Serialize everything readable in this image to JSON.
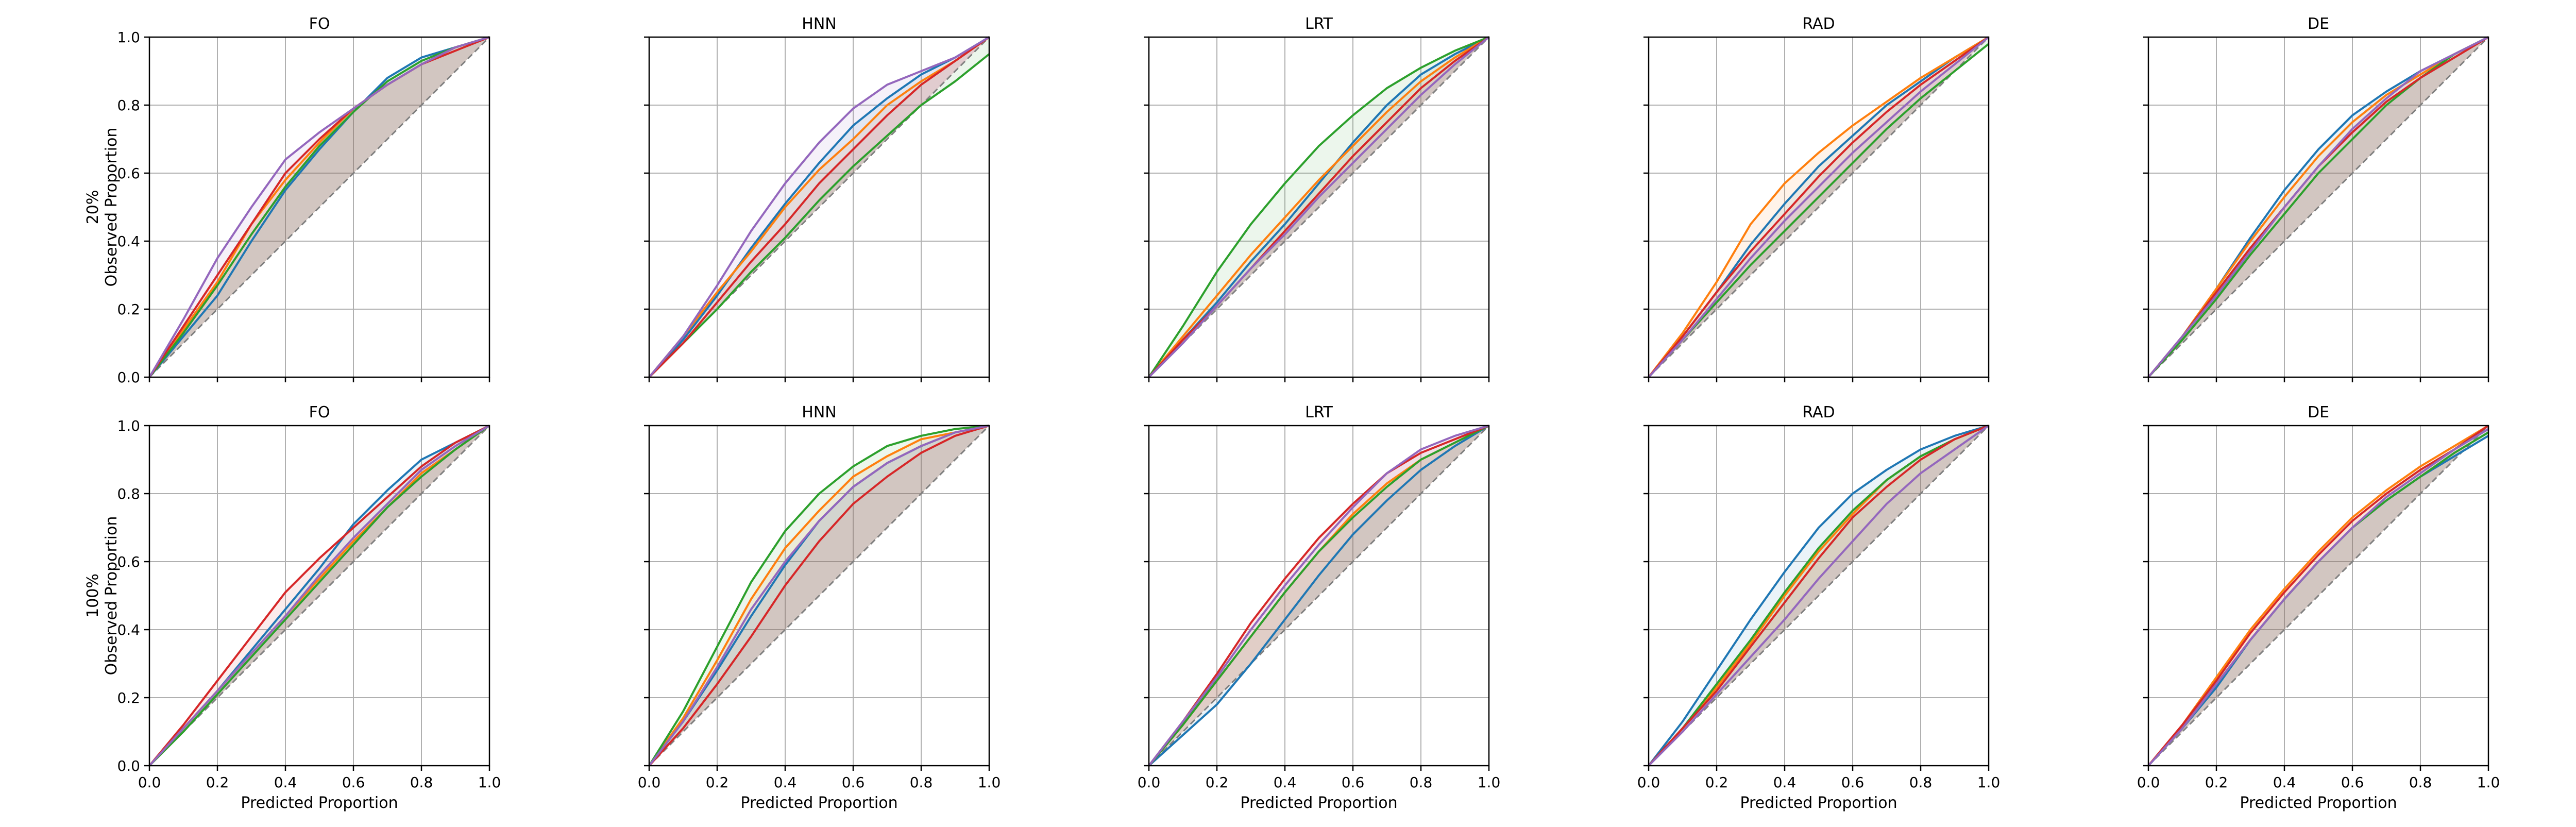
{
  "figure": {
    "row_labels": [
      [
        "20%",
        "Observed Proportion"
      ],
      [
        "100%",
        "Observed Proportion"
      ]
    ],
    "xlabel": "Predicted Proportion"
  },
  "chart_data": [
    {
      "type": "line",
      "title": "FO",
      "row_label": "20%",
      "ylabel": "Observed Proportion",
      "xlabel": "",
      "xlim": [
        0,
        1
      ],
      "ylim": [
        0,
        1
      ],
      "grid": true,
      "x": [
        0,
        0.1,
        0.2,
        0.3,
        0.4,
        0.5,
        0.6,
        0.7,
        0.8,
        0.9,
        1.0
      ],
      "series": [
        {
          "color": "#1f77b4",
          "values": [
            0,
            0.12,
            0.24,
            0.4,
            0.55,
            0.67,
            0.78,
            0.88,
            0.94,
            0.97,
            1.0
          ]
        },
        {
          "color": "#ff7f0e",
          "values": [
            0,
            0.14,
            0.28,
            0.45,
            0.58,
            0.69,
            0.79,
            0.86,
            0.92,
            0.97,
            1.0
          ]
        },
        {
          "color": "#2ca02c",
          "values": [
            0,
            0.13,
            0.27,
            0.42,
            0.56,
            0.68,
            0.78,
            0.87,
            0.93,
            0.97,
            1.0
          ]
        },
        {
          "color": "#d62728",
          "values": [
            0,
            0.15,
            0.3,
            0.45,
            0.6,
            0.7,
            0.79,
            0.86,
            0.92,
            0.96,
            1.0
          ]
        },
        {
          "color": "#9467bd",
          "values": [
            0,
            0.17,
            0.35,
            0.5,
            0.64,
            0.72,
            0.79,
            0.86,
            0.92,
            0.97,
            1.0
          ]
        }
      ]
    },
    {
      "type": "line",
      "title": "HNN",
      "row_label": "20%",
      "xlabel": "",
      "xlim": [
        0,
        1
      ],
      "ylim": [
        0,
        1
      ],
      "grid": true,
      "x": [
        0,
        0.1,
        0.2,
        0.3,
        0.4,
        0.5,
        0.6,
        0.7,
        0.8,
        0.9,
        1.0
      ],
      "series": [
        {
          "color": "#1f77b4",
          "values": [
            0,
            0.11,
            0.24,
            0.38,
            0.51,
            0.63,
            0.74,
            0.82,
            0.89,
            0.94,
            1.0
          ]
        },
        {
          "color": "#ff7f0e",
          "values": [
            0,
            0.12,
            0.25,
            0.37,
            0.5,
            0.61,
            0.7,
            0.8,
            0.87,
            0.93,
            1.0
          ]
        },
        {
          "color": "#2ca02c",
          "values": [
            0,
            0.1,
            0.2,
            0.31,
            0.41,
            0.52,
            0.62,
            0.71,
            0.8,
            0.87,
            0.95
          ]
        },
        {
          "color": "#d62728",
          "values": [
            0,
            0.1,
            0.22,
            0.34,
            0.45,
            0.57,
            0.67,
            0.77,
            0.86,
            0.93,
            1.0
          ]
        },
        {
          "color": "#9467bd",
          "values": [
            0,
            0.12,
            0.27,
            0.43,
            0.57,
            0.69,
            0.79,
            0.86,
            0.9,
            0.94,
            1.0
          ]
        }
      ]
    },
    {
      "type": "line",
      "title": "LRT",
      "row_label": "20%",
      "xlabel": "",
      "xlim": [
        0,
        1
      ],
      "ylim": [
        0,
        1
      ],
      "grid": true,
      "x": [
        0,
        0.1,
        0.2,
        0.3,
        0.4,
        0.5,
        0.6,
        0.7,
        0.8,
        0.9,
        1.0
      ],
      "series": [
        {
          "color": "#1f77b4",
          "values": [
            0,
            0.11,
            0.22,
            0.34,
            0.45,
            0.57,
            0.69,
            0.8,
            0.89,
            0.95,
            1.0
          ]
        },
        {
          "color": "#ff7f0e",
          "values": [
            0,
            0.12,
            0.24,
            0.36,
            0.47,
            0.58,
            0.68,
            0.78,
            0.87,
            0.94,
            1.0
          ]
        },
        {
          "color": "#2ca02c",
          "values": [
            0,
            0.15,
            0.31,
            0.45,
            0.57,
            0.68,
            0.77,
            0.85,
            0.91,
            0.96,
            1.0
          ]
        },
        {
          "color": "#d62728",
          "values": [
            0,
            0.11,
            0.21,
            0.32,
            0.43,
            0.54,
            0.65,
            0.75,
            0.85,
            0.93,
            1.0
          ]
        },
        {
          "color": "#9467bd",
          "values": [
            0,
            0.1,
            0.21,
            0.32,
            0.42,
            0.53,
            0.63,
            0.73,
            0.83,
            0.92,
            1.0
          ]
        }
      ]
    },
    {
      "type": "line",
      "title": "RAD",
      "row_label": "20%",
      "xlabel": "",
      "xlim": [
        0,
        1
      ],
      "ylim": [
        0,
        1
      ],
      "grid": true,
      "x": [
        0,
        0.1,
        0.2,
        0.3,
        0.4,
        0.5,
        0.6,
        0.7,
        0.8,
        0.9,
        1.0
      ],
      "series": [
        {
          "color": "#1f77b4",
          "values": [
            0,
            0.12,
            0.25,
            0.39,
            0.51,
            0.62,
            0.71,
            0.8,
            0.87,
            0.94,
            1.0
          ]
        },
        {
          "color": "#ff7f0e",
          "values": [
            0,
            0.13,
            0.28,
            0.45,
            0.57,
            0.66,
            0.74,
            0.81,
            0.88,
            0.94,
            1.0
          ]
        },
        {
          "color": "#2ca02c",
          "values": [
            0,
            0.11,
            0.22,
            0.33,
            0.43,
            0.53,
            0.63,
            0.73,
            0.82,
            0.9,
            0.98
          ]
        },
        {
          "color": "#d62728",
          "values": [
            0,
            0.12,
            0.25,
            0.37,
            0.48,
            0.59,
            0.69,
            0.78,
            0.86,
            0.93,
            1.0
          ]
        },
        {
          "color": "#9467bd",
          "values": [
            0,
            0.11,
            0.23,
            0.35,
            0.46,
            0.56,
            0.66,
            0.75,
            0.84,
            0.92,
            1.0
          ]
        }
      ]
    },
    {
      "type": "line",
      "title": "DE",
      "row_label": "20%",
      "xlabel": "",
      "xlim": [
        0,
        1
      ],
      "ylim": [
        0,
        1
      ],
      "grid": true,
      "x": [
        0,
        0.1,
        0.2,
        0.3,
        0.4,
        0.5,
        0.6,
        0.7,
        0.8,
        0.9,
        1.0
      ],
      "series": [
        {
          "color": "#1f77b4",
          "values": [
            0,
            0.12,
            0.26,
            0.41,
            0.55,
            0.67,
            0.77,
            0.84,
            0.9,
            0.95,
            1.0
          ]
        },
        {
          "color": "#ff7f0e",
          "values": [
            0,
            0.12,
            0.26,
            0.4,
            0.53,
            0.65,
            0.75,
            0.83,
            0.89,
            0.95,
            1.0
          ]
        },
        {
          "color": "#2ca02c",
          "values": [
            0,
            0.11,
            0.23,
            0.36,
            0.48,
            0.6,
            0.7,
            0.8,
            0.88,
            0.95,
            1.0
          ]
        },
        {
          "color": "#d62728",
          "values": [
            0,
            0.12,
            0.25,
            0.38,
            0.5,
            0.62,
            0.72,
            0.81,
            0.88,
            0.94,
            1.0
          ]
        },
        {
          "color": "#9467bd",
          "values": [
            0,
            0.12,
            0.24,
            0.37,
            0.5,
            0.62,
            0.73,
            0.82,
            0.9,
            0.95,
            1.0
          ]
        }
      ]
    },
    {
      "type": "line",
      "title": "FO",
      "row_label": "100%",
      "ylabel": "Observed Proportion",
      "xlabel": "Predicted Proportion",
      "xlim": [
        0,
        1
      ],
      "ylim": [
        0,
        1
      ],
      "grid": true,
      "x": [
        0,
        0.1,
        0.2,
        0.3,
        0.4,
        0.5,
        0.6,
        0.7,
        0.8,
        0.9,
        1.0
      ],
      "series": [
        {
          "color": "#1f77b4",
          "values": [
            0,
            0.11,
            0.22,
            0.34,
            0.46,
            0.58,
            0.71,
            0.81,
            0.9,
            0.95,
            1.0
          ]
        },
        {
          "color": "#ff7f0e",
          "values": [
            0,
            0.11,
            0.22,
            0.33,
            0.44,
            0.55,
            0.66,
            0.76,
            0.86,
            0.93,
            1.0
          ]
        },
        {
          "color": "#2ca02c",
          "values": [
            0,
            0.1,
            0.21,
            0.32,
            0.43,
            0.54,
            0.65,
            0.76,
            0.85,
            0.93,
            1.0
          ]
        },
        {
          "color": "#d62728",
          "values": [
            0,
            0.12,
            0.25,
            0.38,
            0.51,
            0.61,
            0.7,
            0.79,
            0.88,
            0.95,
            1.0
          ]
        },
        {
          "color": "#9467bd",
          "values": [
            0,
            0.11,
            0.22,
            0.33,
            0.44,
            0.56,
            0.67,
            0.77,
            0.87,
            0.94,
            1.0
          ]
        }
      ]
    },
    {
      "type": "line",
      "title": "HNN",
      "row_label": "100%",
      "xlabel": "Predicted Proportion",
      "xlim": [
        0,
        1
      ],
      "ylim": [
        0,
        1
      ],
      "grid": true,
      "x": [
        0,
        0.1,
        0.2,
        0.3,
        0.4,
        0.5,
        0.6,
        0.7,
        0.8,
        0.9,
        1.0
      ],
      "series": [
        {
          "color": "#1f77b4",
          "values": [
            0,
            0.13,
            0.28,
            0.44,
            0.59,
            0.72,
            0.82,
            0.89,
            0.94,
            0.98,
            1.0
          ]
        },
        {
          "color": "#ff7f0e",
          "values": [
            0,
            0.14,
            0.31,
            0.49,
            0.64,
            0.75,
            0.85,
            0.91,
            0.96,
            0.98,
            1.0
          ]
        },
        {
          "color": "#2ca02c",
          "values": [
            0,
            0.16,
            0.35,
            0.54,
            0.69,
            0.8,
            0.88,
            0.94,
            0.97,
            0.99,
            1.0
          ]
        },
        {
          "color": "#d62728",
          "values": [
            0,
            0.11,
            0.24,
            0.38,
            0.53,
            0.66,
            0.77,
            0.85,
            0.92,
            0.97,
            1.0
          ]
        },
        {
          "color": "#9467bd",
          "values": [
            0,
            0.13,
            0.29,
            0.46,
            0.6,
            0.72,
            0.82,
            0.89,
            0.94,
            0.98,
            1.0
          ]
        }
      ]
    },
    {
      "type": "line",
      "title": "LRT",
      "row_label": "100%",
      "xlabel": "Predicted Proportion",
      "xlim": [
        0,
        1
      ],
      "ylim": [
        0,
        1
      ],
      "grid": true,
      "x": [
        0,
        0.1,
        0.2,
        0.3,
        0.4,
        0.5,
        0.6,
        0.7,
        0.8,
        0.9,
        1.0
      ],
      "series": [
        {
          "color": "#1f77b4",
          "values": [
            0,
            0.09,
            0.18,
            0.3,
            0.43,
            0.56,
            0.68,
            0.78,
            0.87,
            0.94,
            1.0
          ]
        },
        {
          "color": "#ff7f0e",
          "values": [
            0,
            0.12,
            0.25,
            0.38,
            0.51,
            0.63,
            0.74,
            0.83,
            0.9,
            0.95,
            1.0
          ]
        },
        {
          "color": "#2ca02c",
          "values": [
            0,
            0.12,
            0.25,
            0.38,
            0.51,
            0.63,
            0.73,
            0.82,
            0.9,
            0.95,
            1.0
          ]
        },
        {
          "color": "#d62728",
          "values": [
            0,
            0.13,
            0.27,
            0.42,
            0.55,
            0.67,
            0.77,
            0.86,
            0.92,
            0.96,
            1.0
          ]
        },
        {
          "color": "#9467bd",
          "values": [
            0,
            0.13,
            0.26,
            0.4,
            0.53,
            0.65,
            0.76,
            0.86,
            0.93,
            0.97,
            1.0
          ]
        }
      ]
    },
    {
      "type": "line",
      "title": "RAD",
      "row_label": "100%",
      "xlabel": "Predicted Proportion",
      "xlim": [
        0,
        1
      ],
      "ylim": [
        0,
        1
      ],
      "grid": true,
      "x": [
        0,
        0.1,
        0.2,
        0.3,
        0.4,
        0.5,
        0.6,
        0.7,
        0.8,
        0.9,
        1.0
      ],
      "series": [
        {
          "color": "#1f77b4",
          "values": [
            0,
            0.13,
            0.28,
            0.43,
            0.57,
            0.7,
            0.8,
            0.87,
            0.93,
            0.97,
            1.0
          ]
        },
        {
          "color": "#ff7f0e",
          "values": [
            0,
            0.11,
            0.23,
            0.36,
            0.5,
            0.63,
            0.74,
            0.84,
            0.91,
            0.96,
            1.0
          ]
        },
        {
          "color": "#2ca02c",
          "values": [
            0,
            0.11,
            0.24,
            0.37,
            0.51,
            0.64,
            0.75,
            0.84,
            0.91,
            0.96,
            1.0
          ]
        },
        {
          "color": "#d62728",
          "values": [
            0,
            0.11,
            0.22,
            0.35,
            0.48,
            0.61,
            0.73,
            0.82,
            0.9,
            0.96,
            1.0
          ]
        },
        {
          "color": "#9467bd",
          "values": [
            0,
            0.1,
            0.21,
            0.32,
            0.43,
            0.55,
            0.66,
            0.77,
            0.86,
            0.93,
            1.0
          ]
        }
      ]
    },
    {
      "type": "line",
      "title": "DE",
      "row_label": "100%",
      "xlabel": "Predicted Proportion",
      "xlim": [
        0,
        1
      ],
      "ylim": [
        0,
        1
      ],
      "grid": true,
      "x": [
        0,
        0.1,
        0.2,
        0.3,
        0.4,
        0.5,
        0.6,
        0.7,
        0.8,
        0.9,
        1.0
      ],
      "series": [
        {
          "color": "#1f77b4",
          "values": [
            0,
            0.11,
            0.23,
            0.37,
            0.49,
            0.6,
            0.7,
            0.78,
            0.85,
            0.91,
            0.97
          ]
        },
        {
          "color": "#ff7f0e",
          "values": [
            0,
            0.12,
            0.26,
            0.4,
            0.52,
            0.63,
            0.73,
            0.81,
            0.88,
            0.94,
            1.0
          ]
        },
        {
          "color": "#2ca02c",
          "values": [
            0,
            0.11,
            0.24,
            0.37,
            0.49,
            0.6,
            0.7,
            0.78,
            0.85,
            0.92,
            0.98
          ]
        },
        {
          "color": "#d62728",
          "values": [
            0,
            0.12,
            0.25,
            0.39,
            0.51,
            0.62,
            0.72,
            0.8,
            0.87,
            0.93,
            1.0
          ]
        },
        {
          "color": "#9467bd",
          "values": [
            0,
            0.11,
            0.24,
            0.37,
            0.49,
            0.6,
            0.7,
            0.79,
            0.86,
            0.93,
            0.99
          ]
        }
      ]
    }
  ]
}
